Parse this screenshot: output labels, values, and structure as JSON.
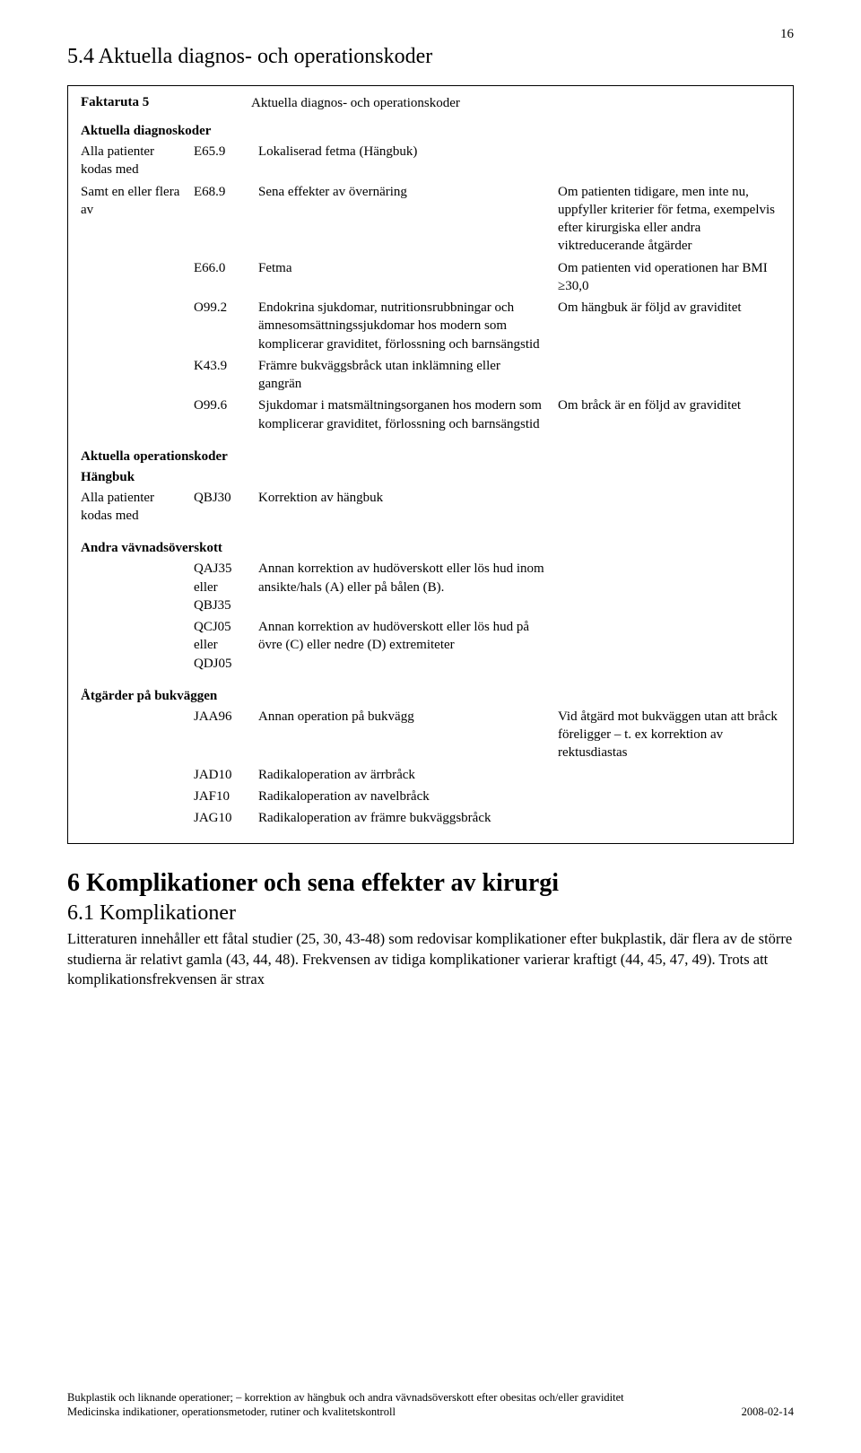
{
  "pageNumber": "16",
  "section54_title": "5.4  Aktuella diagnos- och operationskoder",
  "faktaruta": {
    "label": "Faktaruta 5",
    "title": "Aktuella diagnos- och operationskoder",
    "diag_heading": "Aktuella diagnoskoder",
    "diag_rows": [
      {
        "c1": "Alla patienter kodas med",
        "c2": "E65.9",
        "c3": "Lokaliserad fetma (Hängbuk)",
        "c4": ""
      },
      {
        "c1": "Samt en eller flera av",
        "c2": "E68.9",
        "c3": "Sena effekter av övernäring",
        "c4": "Om patienten tidigare, men inte nu, uppfyller kriterier för fetma, exempelvis efter kirurgiska eller andra viktreducerande åtgärder"
      },
      {
        "c1": "",
        "c2": "E66.0",
        "c3": "Fetma",
        "c4": "Om patienten vid operationen har BMI ≥30,0"
      },
      {
        "c1": "",
        "c2": "O99.2",
        "c3": "Endokrina sjukdomar, nutritionsrubbningar och ämnesomsättningssjukdomar hos modern som komplicerar graviditet, förlossning och barnsängstid",
        "c4": "Om hängbuk är följd av graviditet"
      },
      {
        "c1": "",
        "c2": "K43.9",
        "c3": "Främre bukväggsbråck utan inklämning eller gangrän",
        "c4": ""
      },
      {
        "c1": "",
        "c2": "O99.6",
        "c3": "Sjukdomar i matsmältningsorganen hos modern som komplicerar graviditet, förlossning och barnsängstid",
        "c4": "Om bråck är en följd av graviditet"
      }
    ],
    "op_heading": "Aktuella operationskoder",
    "hangbuk_heading": "Hängbuk",
    "hangbuk_row": {
      "c1": "Alla patienter kodas med",
      "c2": "QBJ30",
      "c3": "Korrektion av hängbuk",
      "c4": ""
    },
    "andra_heading": "Andra vävnadsöverskott",
    "andra_rows": [
      {
        "c1": "",
        "c2": "QAJ35 eller QBJ35",
        "c3": "Annan korrektion av hudöverskott eller lös hud inom ansikte/hals (A) eller på bålen (B).",
        "c4": ""
      },
      {
        "c1": "",
        "c2": "QCJ05 eller QDJ05",
        "c3": "Annan korrektion av hudöverskott eller lös hud på övre (C) eller nedre (D) extremiteter",
        "c4": ""
      }
    ],
    "atgarder_heading": "Åtgärder på bukväggen",
    "atgarder_rows": [
      {
        "c1": "",
        "c2": "JAA96",
        "c3": "Annan operation på bukvägg",
        "c4": "Vid åtgärd mot bukväggen utan att bråck föreligger – t. ex korrektion av rektusdiastas"
      },
      {
        "c1": "",
        "c2": "JAD10",
        "c3": "Radikaloperation av ärrbråck",
        "c4": ""
      },
      {
        "c1": "",
        "c2": "JAF10",
        "c3": "Radikaloperation av navelbråck",
        "c4": ""
      },
      {
        "c1": "",
        "c2": "JAG10",
        "c3": "Radikaloperation av främre bukväggsbråck",
        "c4": ""
      }
    ]
  },
  "section6_title": "6    Komplikationer och sena effekter av kirurgi",
  "section61_title": "6.1  Komplikationer",
  "section61_body": "Litteraturen innehåller ett fåtal studier (25, 30, 43-48) som redovisar komplikationer efter bukplastik, där flera av de större studierna är relativt gamla (43, 44, 48). Frekvensen av tidiga komplikationer varierar kraftigt (44, 45, 47, 49). Trots att komplikationsfrekvensen är strax",
  "footer_line1": "Bukplastik och liknande operationer; – korrektion av hängbuk och andra vävnadsöverskott efter obesitas och/eller graviditet",
  "footer_line2": "Medicinska indikationer, operationsmetoder, rutiner och kvalitetskontroll",
  "footer_date": "2008-02-14"
}
